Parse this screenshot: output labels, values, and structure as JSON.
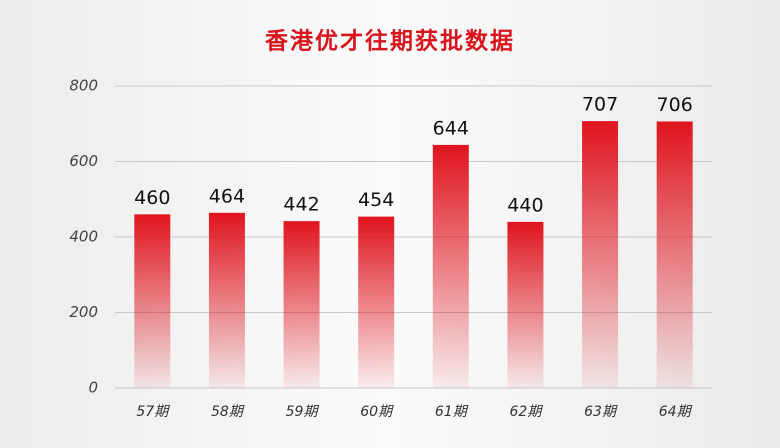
{
  "chart_data": {
    "type": "bar",
    "title": "香港优才往期获批数据",
    "categories": [
      "57期",
      "58期",
      "59期",
      "60期",
      "61期",
      "62期",
      "63期",
      "64期"
    ],
    "values": [
      460,
      464,
      442,
      454,
      644,
      440,
      707,
      706
    ],
    "color": "#e0141e",
    "ylim": [
      0,
      800
    ],
    "yticks": [
      0,
      200,
      400,
      600,
      800
    ],
    "grid": true
  }
}
